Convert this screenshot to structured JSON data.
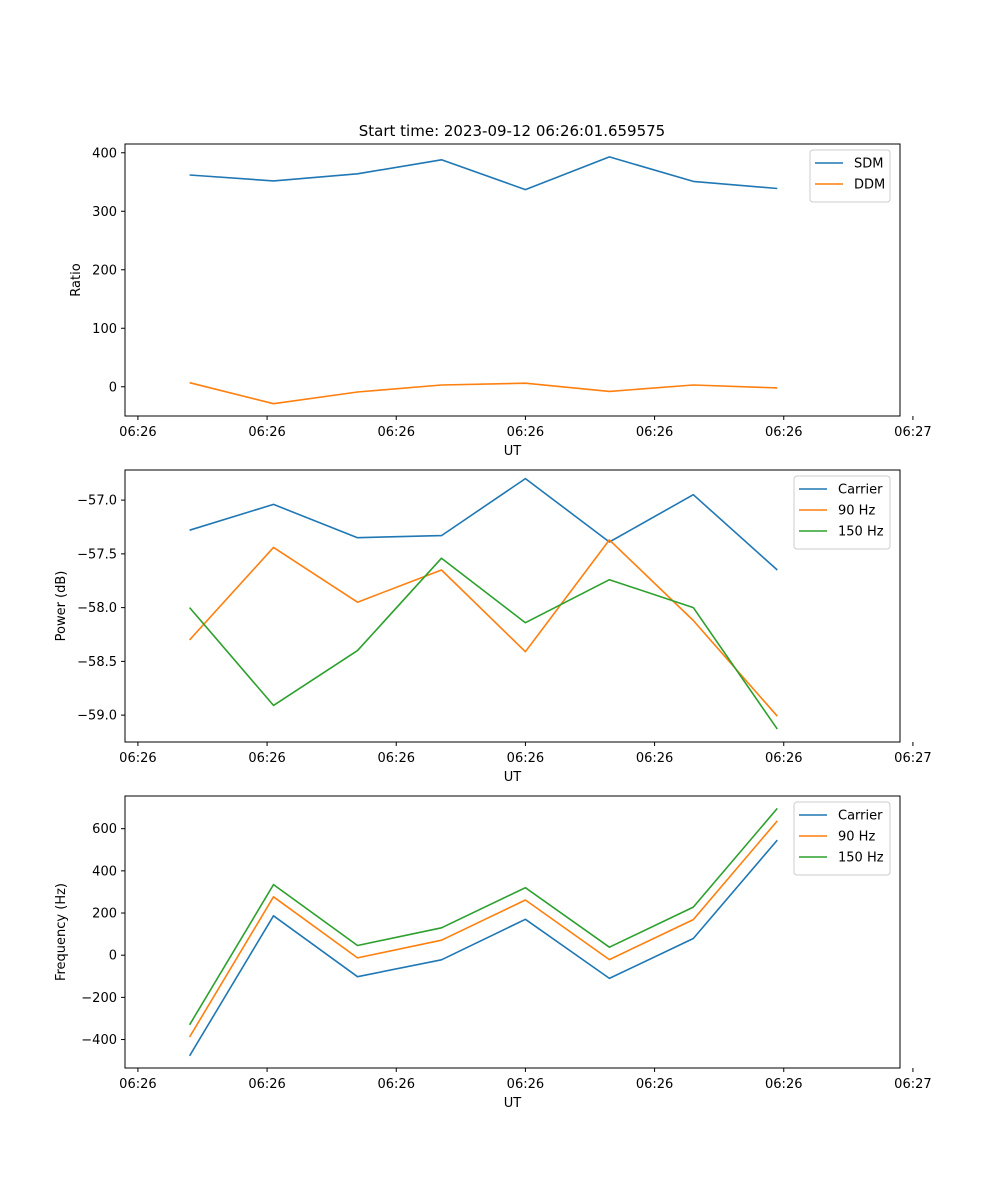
{
  "title": "Start time: 2023-09-12 06:26:01.659575",
  "colors": {
    "blue": "#1f77b4",
    "orange": "#ff7f0e",
    "green": "#2ca02c"
  },
  "chart_data": [
    {
      "type": "line",
      "xlabel": "UT",
      "ylabel": "Ratio",
      "xticks": [
        "06:26",
        "06:26",
        "06:26",
        "06:26",
        "06:26",
        "06:26",
        "06:27"
      ],
      "xlim": [
        0,
        6
      ],
      "x": [
        0.5,
        1.15,
        1.8,
        2.45,
        3.1,
        3.75,
        4.4,
        5.05
      ],
      "ylim": [
        -50,
        415
      ],
      "yticks": [
        0,
        100,
        200,
        300,
        400
      ],
      "ytick_labels": [
        "0",
        "100",
        "200",
        "300",
        "400"
      ],
      "legend_position": "top-right",
      "series": [
        {
          "name": "SDM",
          "color": "#1f77b4",
          "values": [
            362,
            352,
            364,
            388,
            337,
            393,
            351,
            339
          ]
        },
        {
          "name": "DDM",
          "color": "#ff7f0e",
          "values": [
            7,
            -29,
            -9,
            3,
            6,
            -8,
            3,
            -2
          ]
        }
      ]
    },
    {
      "type": "line",
      "xlabel": "UT",
      "ylabel": "Power (dB)",
      "xticks": [
        "06:26",
        "06:26",
        "06:26",
        "06:26",
        "06:26",
        "06:26",
        "06:27"
      ],
      "xlim": [
        0,
        6
      ],
      "x": [
        0.5,
        1.15,
        1.8,
        2.45,
        3.1,
        3.75,
        4.4,
        5.05
      ],
      "ylim": [
        -59.25,
        -56.72
      ],
      "yticks": [
        -59.0,
        -58.5,
        -58.0,
        -57.5,
        -57.0
      ],
      "ytick_labels": [
        "−59.0",
        "−58.5",
        "−58.0",
        "−57.5",
        "−57.0"
      ],
      "legend_position": "top-right",
      "series": [
        {
          "name": "Carrier",
          "color": "#1f77b4",
          "values": [
            -57.28,
            -57.04,
            -57.35,
            -57.33,
            -56.8,
            -57.39,
            -56.95,
            -57.65
          ]
        },
        {
          "name": "90 Hz",
          "color": "#ff7f0e",
          "values": [
            -58.3,
            -57.44,
            -57.95,
            -57.65,
            -58.41,
            -57.37,
            -58.12,
            -59.01
          ]
        },
        {
          "name": "150 Hz",
          "color": "#2ca02c",
          "values": [
            -58.0,
            -58.91,
            -58.4,
            -57.54,
            -58.14,
            -57.74,
            -58.0,
            -59.13
          ]
        }
      ]
    },
    {
      "type": "line",
      "xlabel": "UT",
      "ylabel": "Frequency (Hz)",
      "xticks": [
        "06:26",
        "06:26",
        "06:26",
        "06:26",
        "06:26",
        "06:26",
        "06:27"
      ],
      "xlim": [
        0,
        6
      ],
      "x": [
        0.5,
        1.15,
        1.8,
        2.45,
        3.1,
        3.75,
        4.4,
        5.05
      ],
      "ylim": [
        -535,
        755
      ],
      "yticks": [
        -400,
        -200,
        0,
        200,
        400,
        600
      ],
      "ytick_labels": [
        "−400",
        "−200",
        "0",
        "200",
        "400",
        "600"
      ],
      "legend_position": "top-right",
      "series": [
        {
          "name": "Carrier",
          "color": "#1f77b4",
          "values": [
            -477,
            187,
            -102,
            -22,
            170,
            -110,
            79,
            546
          ]
        },
        {
          "name": "90 Hz",
          "color": "#ff7f0e",
          "values": [
            -388,
            277,
            -13,
            71,
            262,
            -21,
            169,
            637
          ]
        },
        {
          "name": "150 Hz",
          "color": "#2ca02c",
          "values": [
            -330,
            335,
            46,
            130,
            320,
            38,
            228,
            696
          ]
        }
      ]
    }
  ]
}
